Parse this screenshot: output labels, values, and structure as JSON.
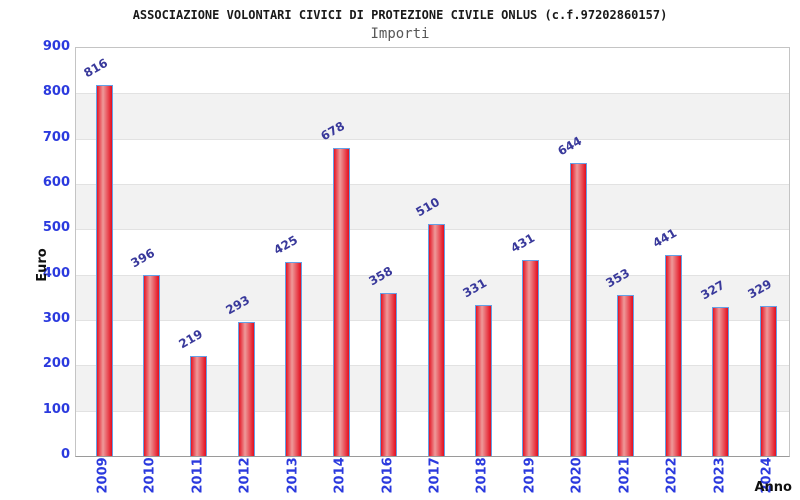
{
  "chart_data": {
    "type": "bar",
    "title": "ASSOCIAZIONE VOLONTARI CIVICI DI PROTEZIONE CIVILE ONLUS (c.f.97202860157)",
    "subtitle": "Importi",
    "xlabel": "Anno",
    "ylabel": "Euro",
    "categories": [
      "2009",
      "2010",
      "2011",
      "2012",
      "2013",
      "2014",
      "2016",
      "2017",
      "2018",
      "2019",
      "2020",
      "2021",
      "2022",
      "2023",
      "2024"
    ],
    "values": [
      816,
      396,
      219,
      293,
      425,
      678,
      358,
      510,
      331,
      431,
      644,
      353,
      441,
      327,
      329
    ],
    "ylim": [
      0,
      900
    ],
    "ytick_step": 100,
    "yticks": [
      0,
      100,
      200,
      300,
      400,
      500,
      600,
      700,
      800,
      900
    ],
    "legend": "none",
    "grid": "horizontal-bands-alternating",
    "bar_labels_rotation_deg": -30,
    "xtick_rotation_deg": -90,
    "colors": {
      "bar_edge": "#e41424",
      "bar_highlight": "#ee9a9a",
      "bar_border": "#64a0e6",
      "tick_label": "#2b3ade",
      "value_label": "#39399b",
      "band_gray": "#f2f2f2",
      "band_white": "#ffffff",
      "gridline": "#e2e2e2",
      "title_color": "#1a1a1a",
      "subtitle_color": "#575757"
    }
  }
}
